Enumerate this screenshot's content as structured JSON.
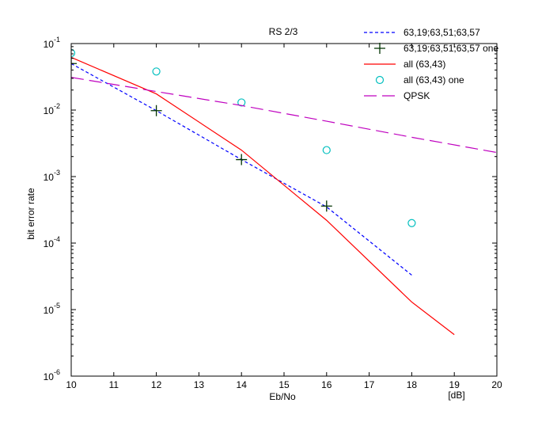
{
  "chart_data": {
    "type": "line",
    "title": "RS 2/3",
    "xlabel": "Eb/No",
    "xunit_label": "[dB]",
    "ylabel": "bit error rate",
    "yscale": "log",
    "xlim": [
      10,
      20
    ],
    "ylim": [
      1e-06,
      0.1
    ],
    "grid": false,
    "legend_position": "top-right",
    "x_ticks": [
      "10",
      "11",
      "12",
      "13",
      "14",
      "15",
      "16",
      "17",
      "18",
      "19",
      "20"
    ],
    "y_ticks": [
      {
        "base": "10",
        "exp": "-1"
      },
      {
        "base": "10",
        "exp": "-2"
      },
      {
        "base": "10",
        "exp": "-3"
      },
      {
        "base": "10",
        "exp": "-4"
      },
      {
        "base": "10",
        "exp": "-5"
      },
      {
        "base": "10",
        "exp": "-6"
      }
    ],
    "series": [
      {
        "name": "63,19;63,51;63,57",
        "style": "dotted-line",
        "color": "#0000ff",
        "x": [
          10,
          12,
          14,
          16,
          18
        ],
        "y": [
          0.05,
          0.0098,
          0.0018,
          0.00035,
          3.3e-05
        ]
      },
      {
        "name": "63,19;63,51;63,57 one",
        "style": "plus-markers",
        "color": "#003300",
        "x": [
          10,
          12,
          14,
          16
        ],
        "y": [
          0.05,
          0.0098,
          0.0018,
          0.00036
        ]
      },
      {
        "name": "all (63,43)",
        "style": "solid-line",
        "color": "#ff0000",
        "x": [
          10,
          12,
          14,
          16,
          18,
          19
        ],
        "y": [
          0.062,
          0.0175,
          0.0025,
          0.00022,
          1.3e-05,
          4.2e-06
        ]
      },
      {
        "name": "all (63,43) one",
        "style": "circle-markers",
        "color": "#00bfbf",
        "x": [
          10,
          12,
          14,
          16,
          18
        ],
        "y": [
          0.072,
          0.038,
          0.013,
          0.0025,
          0.0002
        ]
      },
      {
        "name": "QPSK",
        "style": "dashed-line",
        "color": "#bf00bf",
        "x": [
          10,
          12,
          14,
          16,
          18,
          20
        ],
        "y": [
          0.031,
          0.019,
          0.0117,
          0.0068,
          0.0039,
          0.0023
        ]
      }
    ]
  }
}
